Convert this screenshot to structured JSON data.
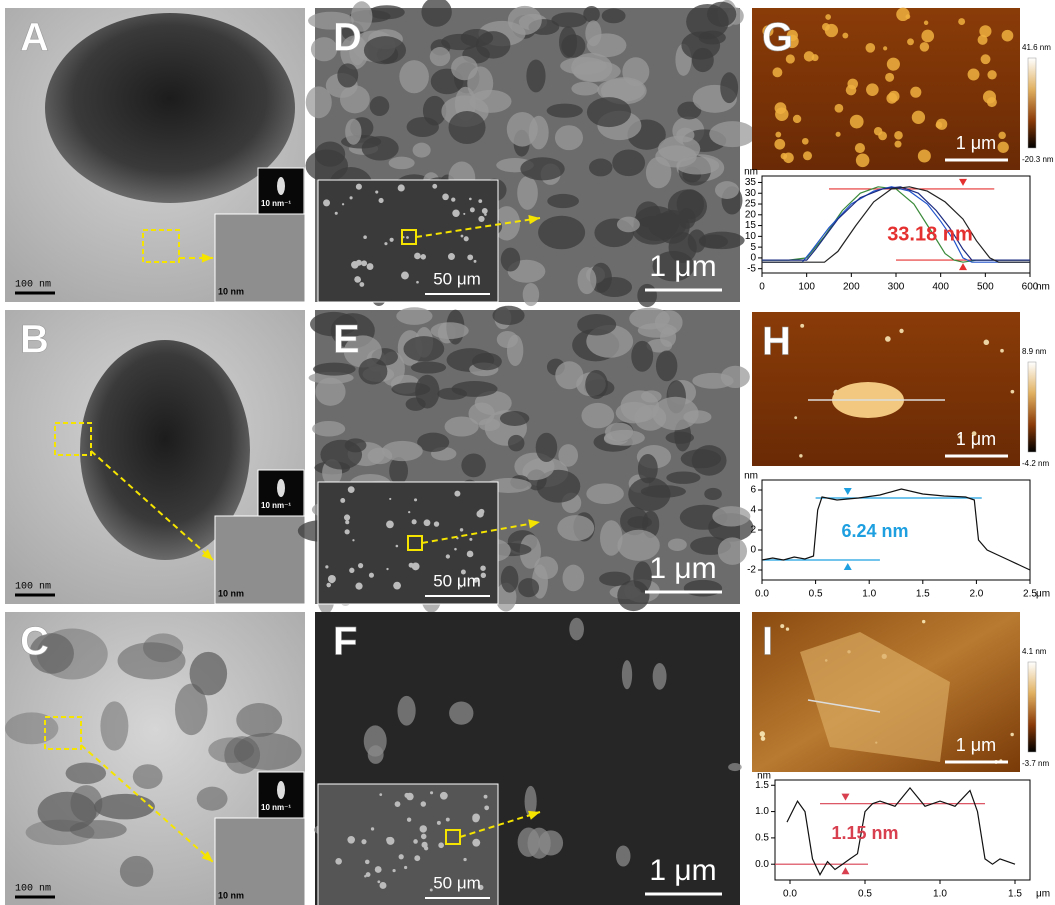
{
  "panels": [
    {
      "letter": "A",
      "scale_bar": "100 nm",
      "saed_scale": "10 nm⁻¹",
      "hrtem_scale": "10 nm"
    },
    {
      "letter": "B",
      "scale_bar": "100 nm",
      "saed_scale": "10 nm⁻¹",
      "hrtem_scale": "10 nm"
    },
    {
      "letter": "C",
      "scale_bar": "100 nm",
      "saed_scale": "10 nm⁻¹",
      "hrtem_scale": "10 nm"
    },
    {
      "letter": "D",
      "scale_bar": "1 μm",
      "inset_scale": "50 μm"
    },
    {
      "letter": "E",
      "scale_bar": "1 μm",
      "inset_scale": "50 μm"
    },
    {
      "letter": "F",
      "scale_bar": "1 μm",
      "inset_scale": "50 μm"
    },
    {
      "letter": "G",
      "scale_bar": "1 μm",
      "colorbar_max": "41.6 nm",
      "colorbar_min": "-20.3 nm"
    },
    {
      "letter": "H",
      "scale_bar": "1 μm",
      "colorbar_max": "8.9 nm",
      "colorbar_min": "-4.2 nm"
    },
    {
      "letter": "I",
      "scale_bar": "1 μm",
      "colorbar_max": "4.1 nm",
      "colorbar_min": "-3.7 nm"
    }
  ],
  "chart_data": [
    {
      "type": "line",
      "y_label": "nm",
      "x_unit": "nm",
      "annotation": "33.18 nm",
      "annotation_color": "#e53030",
      "xlim": [
        0,
        600
      ],
      "xticks": [
        0,
        100,
        200,
        300,
        400,
        500,
        600
      ],
      "ylim": [
        -7,
        38
      ],
      "yticks": [
        -5,
        0,
        5,
        10,
        15,
        20,
        25,
        30,
        35
      ],
      "guides": [
        {
          "value": 32,
          "from": 150,
          "to": 520,
          "marker": 450
        },
        {
          "value": -1,
          "from": 300,
          "to": 600,
          "marker": 450
        }
      ],
      "guide_color": "#e53030",
      "series": [
        {
          "color": "#3a8a3a",
          "x": [
            0,
            60,
            100,
            140,
            180,
            220,
            260,
            300,
            340,
            380,
            410,
            430,
            450,
            480,
            600
          ],
          "values": [
            -1,
            -1,
            0,
            10,
            22,
            30,
            33,
            32,
            25,
            12,
            2,
            -1,
            -2,
            -1,
            -1
          ]
        },
        {
          "color": "#2255cc",
          "x": [
            0,
            90,
            110,
            150,
            200,
            250,
            290,
            330,
            370,
            400,
            430,
            450,
            470,
            600
          ],
          "values": [
            -2,
            -2,
            3,
            14,
            25,
            31,
            33,
            31,
            25,
            17,
            8,
            0,
            -2,
            -2
          ]
        },
        {
          "color": "#1a2a80",
          "x": [
            0,
            100,
            120,
            170,
            220,
            270,
            310,
            350,
            390,
            420,
            450,
            470,
            600
          ],
          "values": [
            -1,
            -1,
            4,
            18,
            28,
            32,
            33,
            30,
            22,
            14,
            4,
            -1,
            -1
          ]
        },
        {
          "color": "#222222",
          "x": [
            0,
            140,
            170,
            210,
            250,
            290,
            330,
            370,
            410,
            450,
            480,
            510,
            530,
            600
          ],
          "values": [
            -2,
            -2,
            3,
            15,
            26,
            32,
            33,
            31,
            26,
            18,
            8,
            0,
            -2,
            -2
          ]
        }
      ]
    },
    {
      "type": "line",
      "y_label": "nm",
      "x_unit": "μm",
      "annotation": "6.24 nm",
      "annotation_color": "#1ea0e0",
      "xlim": [
        0,
        2.5
      ],
      "xticks": [
        {
          "value": 0,
          "label": "0.0"
        },
        0.5,
        {
          "value": 1,
          "label": "1.0"
        },
        1.5,
        {
          "value": 2,
          "label": "2.0"
        },
        2.5
      ],
      "ylim": [
        -3,
        7
      ],
      "yticks": [
        -2,
        0,
        2,
        4,
        6
      ],
      "guides": [
        {
          "value": 5.2,
          "from": 0.5,
          "to": 2.05,
          "marker": 0.8
        },
        {
          "value": -1,
          "from": 0,
          "to": 1.1,
          "marker": 0.8
        }
      ],
      "guide_color": "#1ea0e0",
      "series": [
        {
          "color": "#111111",
          "x": [
            0,
            0.1,
            0.2,
            0.3,
            0.4,
            0.48,
            0.52,
            0.56,
            0.7,
            0.9,
            1.1,
            1.3,
            1.5,
            1.7,
            1.9,
            1.98,
            2.02,
            2.1,
            2.2,
            2.3,
            2.4,
            2.5
          ],
          "values": [
            -1,
            -0.8,
            -1,
            -0.7,
            -0.9,
            -0.6,
            4,
            5.3,
            5,
            5.2,
            5.5,
            6.1,
            5.6,
            5.4,
            5.3,
            5,
            1,
            0,
            -0.5,
            -1,
            -1.5,
            -2
          ]
        }
      ]
    },
    {
      "type": "line",
      "y_label": "nm",
      "x_unit": "μm",
      "annotation": "1.15 nm",
      "annotation_color": "#d84050",
      "xlim": [
        -0.1,
        1.6
      ],
      "xticks": [
        {
          "value": 0,
          "label": "0.0"
        },
        0.5,
        {
          "value": 1,
          "label": "1.0"
        },
        1.5
      ],
      "ylim": [
        -0.3,
        1.6
      ],
      "yticks": [
        {
          "value": 0,
          "label": "0.0"
        },
        0.5,
        {
          "value": 1,
          "label": "1.0"
        },
        1.5
      ],
      "guides": [
        {
          "value": 1.15,
          "from": 0.2,
          "to": 1.3,
          "marker": 0.37
        },
        {
          "value": 0,
          "from": -0.1,
          "to": 0.52,
          "marker": 0.37
        }
      ],
      "guide_color": "#d84050",
      "series": [
        {
          "color": "#111111",
          "x": [
            -0.02,
            0.05,
            0.1,
            0.15,
            0.2,
            0.25,
            0.3,
            0.35,
            0.4,
            0.45,
            0.5,
            0.55,
            0.6,
            0.7,
            0.8,
            0.9,
            1.0,
            1.1,
            1.2,
            1.25,
            1.3,
            1.35,
            1.4,
            1.5
          ],
          "values": [
            0.8,
            1.2,
            1.0,
            0.1,
            -0.2,
            0.05,
            -0.1,
            0.0,
            0.1,
            0.2,
            1.0,
            1.15,
            1.2,
            1.1,
            1.45,
            1.1,
            1.2,
            1.1,
            1.4,
            1.0,
            0.1,
            0.0,
            0.1,
            0.0
          ]
        }
      ]
    }
  ]
}
